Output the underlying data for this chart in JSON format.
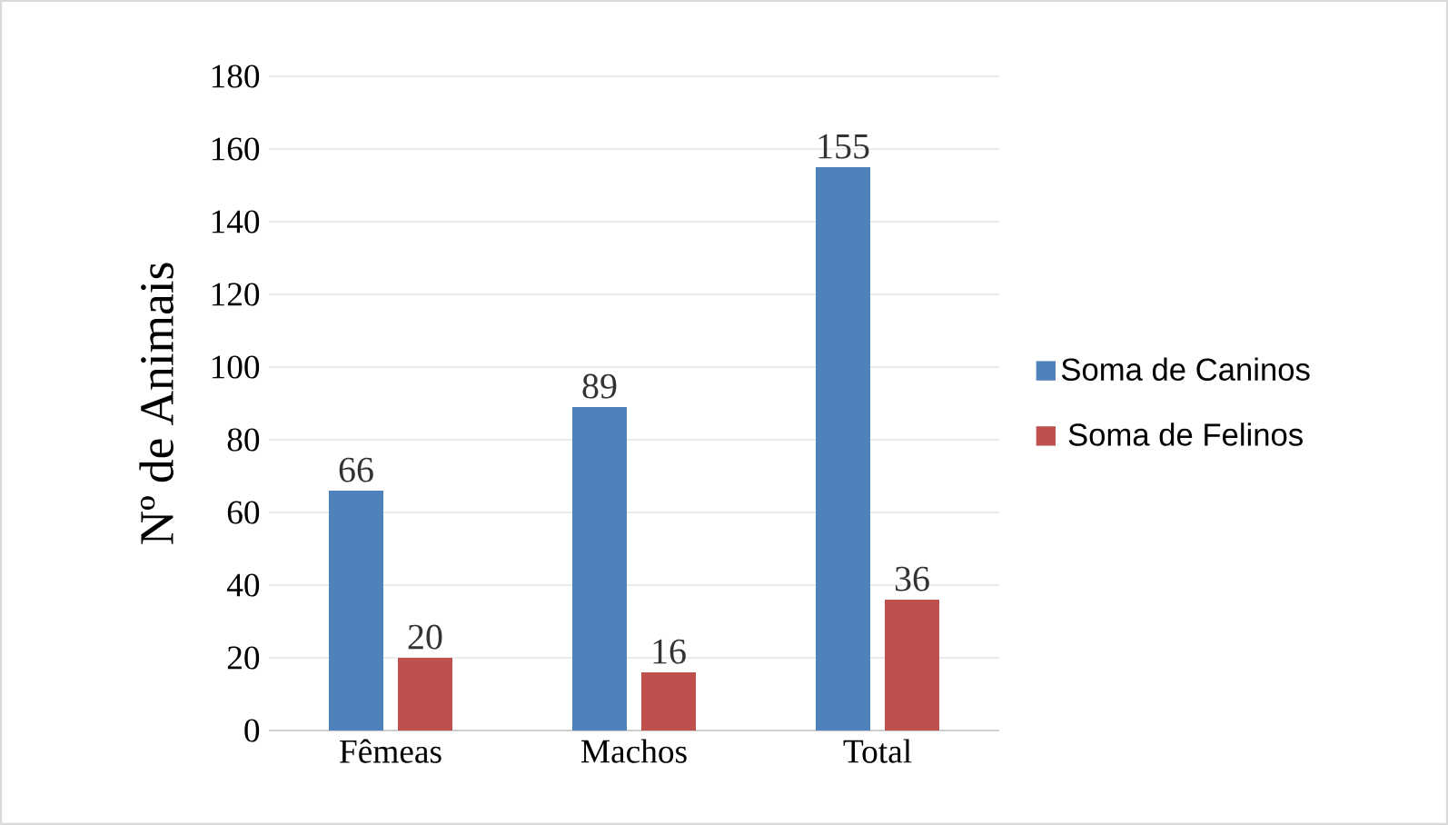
{
  "chart_data": {
    "type": "bar",
    "ylabel": "Nº de Animais",
    "categories": [
      "Fêmeas",
      "Machos",
      "Total"
    ],
    "series": [
      {
        "name": "Soma de Caninos",
        "color": "#4f81bd",
        "values": [
          66,
          89,
          155
        ]
      },
      {
        "name": "Soma de Felinos",
        "color": "#c0504d",
        "values": [
          20,
          16,
          36
        ]
      }
    ],
    "ylim": [
      0,
      180
    ],
    "yticks": [
      0,
      20,
      40,
      60,
      80,
      100,
      120,
      140,
      160,
      180
    ],
    "grid": "y",
    "legend": "right",
    "data_labels": true
  }
}
